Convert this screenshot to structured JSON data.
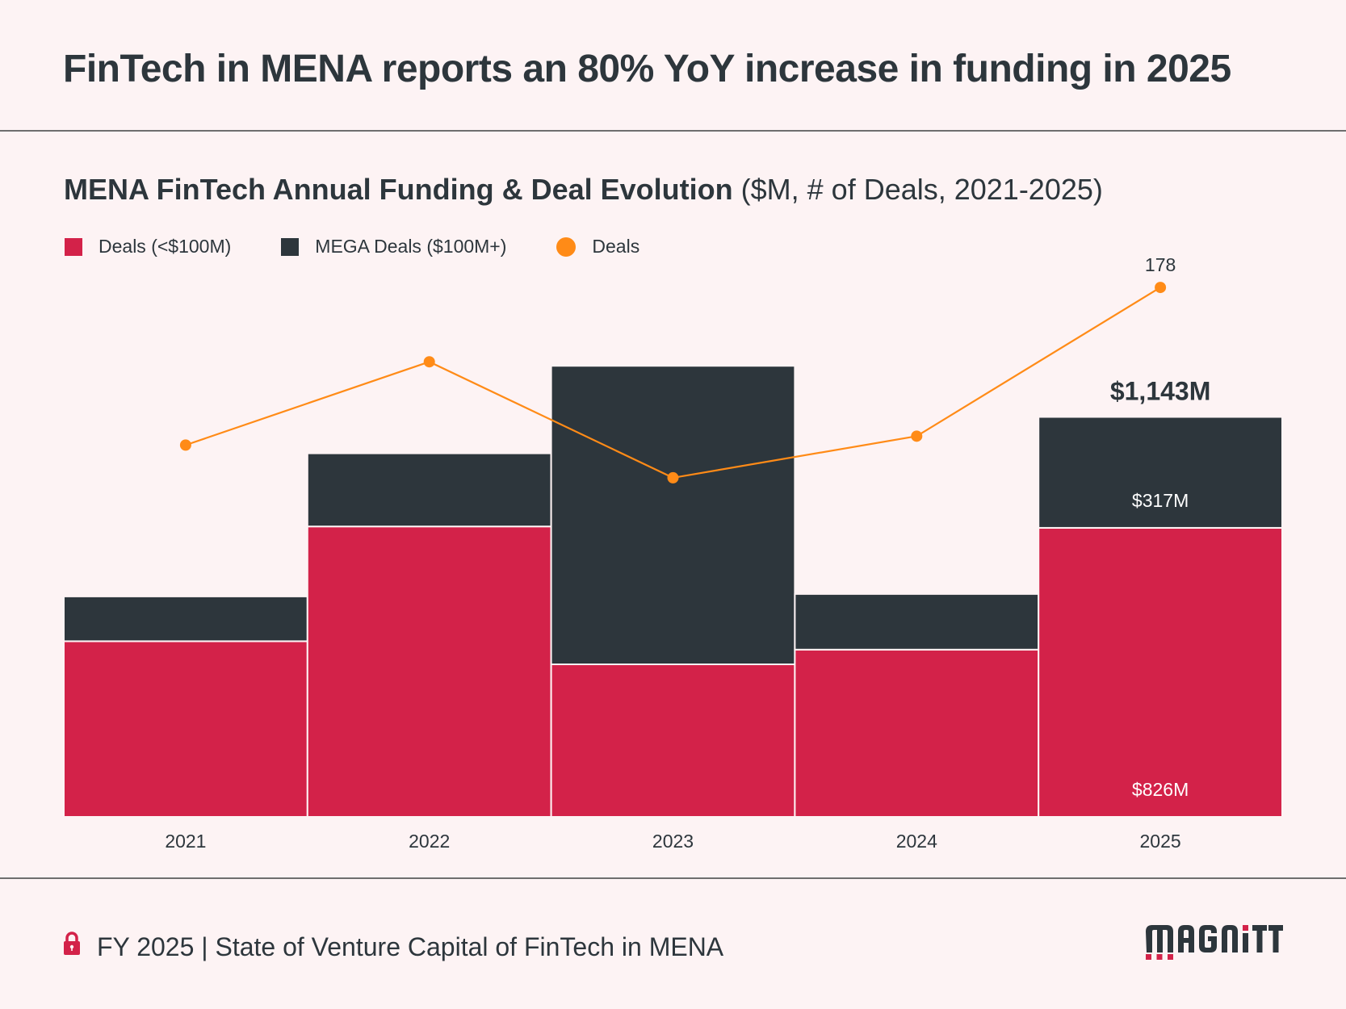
{
  "header": {
    "title": "FinTech in MENA reports an 80% YoY increase in funding in 2025"
  },
  "subtitle": {
    "bold": "MENA FinTech Annual Funding & Deal Evolution",
    "normal": " ($M, # of Deals, 2021-2025)"
  },
  "legend": [
    {
      "label": "Deals (<$100M)",
      "color": "#d32249",
      "shape": "square"
    },
    {
      "label": "MEGA Deals ($100M+)",
      "color": "#2d363c",
      "shape": "square"
    },
    {
      "label": "Deals",
      "color": "#ff8b17",
      "shape": "circle"
    }
  ],
  "footer": {
    "text": "FY 2025 | State of Venture Capital of FinTech in MENA",
    "icon": "lock-icon",
    "logo": "MAGNiTT"
  },
  "chart_data": {
    "type": "bar",
    "stacked": true,
    "title": "MENA FinTech Annual Funding & Deal Evolution",
    "subtitle": "($M, # of Deals, 2021-2025)",
    "xlabel": "",
    "ylabel": "",
    "categories": [
      "2021",
      "2022",
      "2023",
      "2024",
      "2025"
    ],
    "series": [
      {
        "name": "Deals (<$100M)",
        "type": "bar",
        "color": "#d32249",
        "values": [
          502,
          830,
          436,
          478,
          826
        ]
      },
      {
        "name": "MEGA Deals ($100M+)",
        "type": "bar",
        "color": "#2d363c",
        "values": [
          128,
          209,
          853,
          159,
          317
        ]
      },
      {
        "name": "Deals",
        "type": "line",
        "color": "#ff8b17",
        "values": [
          125,
          153,
          114,
          128,
          178
        ]
      }
    ],
    "ylim": [
      0,
      1300
    ],
    "y2lim": [
      0,
      178
    ],
    "grid": false,
    "legend_position": "top-left",
    "annotations": [
      {
        "category": "2025",
        "series": "Deals",
        "text": "178"
      },
      {
        "category": "2025",
        "series": "total",
        "text": "$1,143M"
      },
      {
        "category": "2025",
        "series": "MEGA Deals ($100M+)",
        "text": "$317M"
      },
      {
        "category": "2025",
        "series": "Deals (<$100M)",
        "text": "$826M"
      }
    ]
  }
}
